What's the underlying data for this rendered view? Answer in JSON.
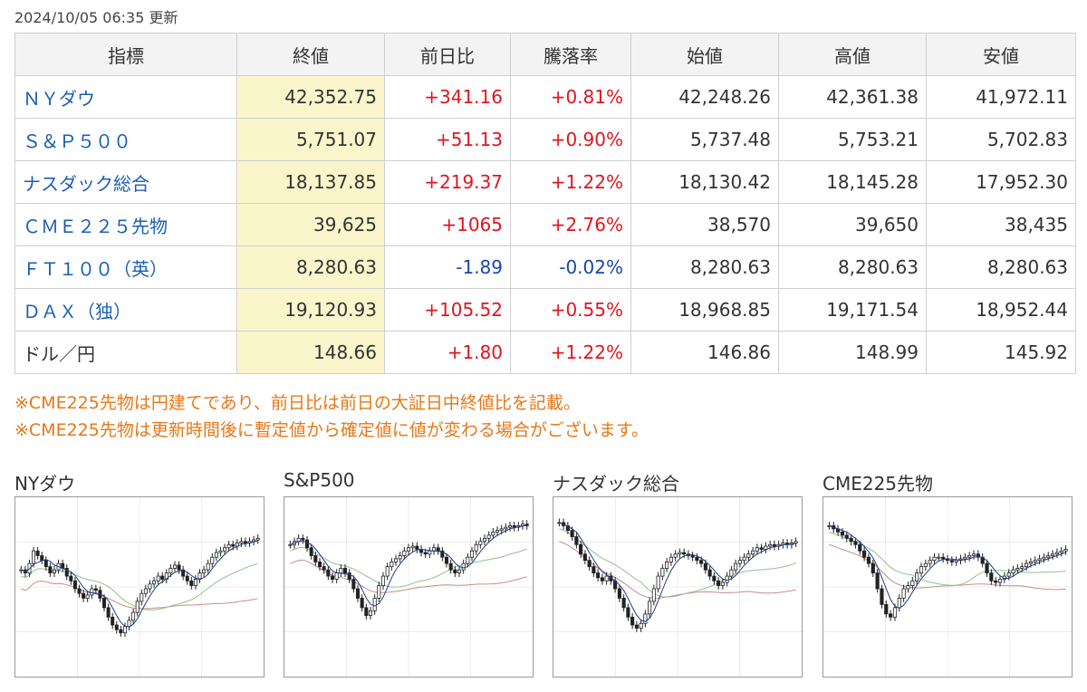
{
  "updated": "2024/10/05 06:35 更新",
  "table": {
    "headers": [
      "指標",
      "終値",
      "前日比",
      "騰落率",
      "始値",
      "高値",
      "安値"
    ],
    "rows": [
      {
        "name": "ＮＹダウ",
        "close": "42,352.75",
        "change": "+341.16",
        "rate": "+0.81%",
        "open": "42,248.26",
        "high": "42,361.38",
        "low": "41,972.11",
        "dir": "up",
        "link": true
      },
      {
        "name": "Ｓ＆Ｐ５００",
        "close": "5,751.07",
        "change": "+51.13",
        "rate": "+0.90%",
        "open": "5,737.48",
        "high": "5,753.21",
        "low": "5,702.83",
        "dir": "up",
        "link": true
      },
      {
        "name": "ナスダック総合",
        "close": "18,137.85",
        "change": "+219.37",
        "rate": "+1.22%",
        "open": "18,130.42",
        "high": "18,145.28",
        "low": "17,952.30",
        "dir": "up",
        "link": true
      },
      {
        "name": "ＣＭＥ２２５先物",
        "close": "39,625",
        "change": "+1065",
        "rate": "+2.76%",
        "open": "38,570",
        "high": "39,650",
        "low": "38,435",
        "dir": "up",
        "link": true
      },
      {
        "name": "ＦＴ１００（英）",
        "close": "8,280.63",
        "change": "-1.89",
        "rate": "-0.02%",
        "open": "8,280.63",
        "high": "8,280.63",
        "low": "8,280.63",
        "dir": "down",
        "link": true
      },
      {
        "name": "ＤＡＸ（独）",
        "close": "19,120.93",
        "change": "+105.52",
        "rate": "+0.55%",
        "open": "18,968.85",
        "high": "19,171.54",
        "low": "18,952.44",
        "dir": "up",
        "link": true
      },
      {
        "name": "ドル／円",
        "close": "148.66",
        "change": "+1.80",
        "rate": "+1.22%",
        "open": "146.86",
        "high": "148.99",
        "low": "145.92",
        "dir": "up",
        "link": false
      }
    ]
  },
  "notes": [
    "※CME225先物は円建てであり、前日比は前日の大証日中終値比を記載。",
    "※CME225先物は更新時間後に暫定値から確定値に値が変わる場合がございます。"
  ],
  "charts": [
    {
      "title": "NYダウ",
      "closes": [
        0.62,
        0.6,
        0.66,
        0.74,
        0.71,
        0.68,
        0.64,
        0.6,
        0.62,
        0.66,
        0.63,
        0.58,
        0.55,
        0.5,
        0.47,
        0.44,
        0.46,
        0.5,
        0.49,
        0.44,
        0.38,
        0.32,
        0.27,
        0.24,
        0.22,
        0.26,
        0.3,
        0.35,
        0.42,
        0.47,
        0.5,
        0.53,
        0.55,
        0.58,
        0.56,
        0.6,
        0.63,
        0.65,
        0.62,
        0.58,
        0.55,
        0.52,
        0.56,
        0.6,
        0.62,
        0.66,
        0.7,
        0.73,
        0.74,
        0.76,
        0.78,
        0.77,
        0.79,
        0.8,
        0.79,
        0.8,
        0.81,
        0.82
      ]
    },
    {
      "title": "S&P500",
      "closes": [
        0.78,
        0.8,
        0.82,
        0.81,
        0.76,
        0.71,
        0.67,
        0.64,
        0.62,
        0.58,
        0.56,
        0.6,
        0.63,
        0.6,
        0.56,
        0.5,
        0.44,
        0.38,
        0.33,
        0.36,
        0.44,
        0.52,
        0.58,
        0.64,
        0.67,
        0.69,
        0.71,
        0.74,
        0.76,
        0.77,
        0.75,
        0.73,
        0.72,
        0.74,
        0.76,
        0.74,
        0.7,
        0.66,
        0.62,
        0.6,
        0.62,
        0.66,
        0.7,
        0.74,
        0.78,
        0.8,
        0.82,
        0.84,
        0.86,
        0.87,
        0.88,
        0.89,
        0.9,
        0.89,
        0.9,
        0.91,
        0.9
      ]
    },
    {
      "title": "ナスダック総合",
      "closes": [
        0.92,
        0.9,
        0.87,
        0.83,
        0.78,
        0.72,
        0.68,
        0.64,
        0.6,
        0.57,
        0.55,
        0.58,
        0.55,
        0.5,
        0.44,
        0.38,
        0.32,
        0.27,
        0.25,
        0.28,
        0.34,
        0.42,
        0.5,
        0.58,
        0.63,
        0.67,
        0.7,
        0.72,
        0.73,
        0.72,
        0.71,
        0.7,
        0.68,
        0.66,
        0.62,
        0.58,
        0.55,
        0.52,
        0.54,
        0.58,
        0.62,
        0.66,
        0.68,
        0.7,
        0.72,
        0.74,
        0.76,
        0.75,
        0.77,
        0.78,
        0.77,
        0.78,
        0.79,
        0.78,
        0.79,
        0.8
      ]
    },
    {
      "title": "CME225先物",
      "closes": [
        0.9,
        0.88,
        0.86,
        0.84,
        0.82,
        0.8,
        0.78,
        0.74,
        0.7,
        0.66,
        0.6,
        0.5,
        0.4,
        0.34,
        0.32,
        0.38,
        0.44,
        0.5,
        0.52,
        0.55,
        0.6,
        0.64,
        0.66,
        0.68,
        0.7,
        0.7,
        0.69,
        0.68,
        0.67,
        0.68,
        0.69,
        0.7,
        0.71,
        0.72,
        0.7,
        0.66,
        0.6,
        0.55,
        0.54,
        0.56,
        0.58,
        0.6,
        0.62,
        0.63,
        0.64,
        0.66,
        0.67,
        0.68,
        0.69,
        0.7,
        0.71,
        0.72,
        0.73,
        0.74,
        0.75
      ]
    }
  ]
}
